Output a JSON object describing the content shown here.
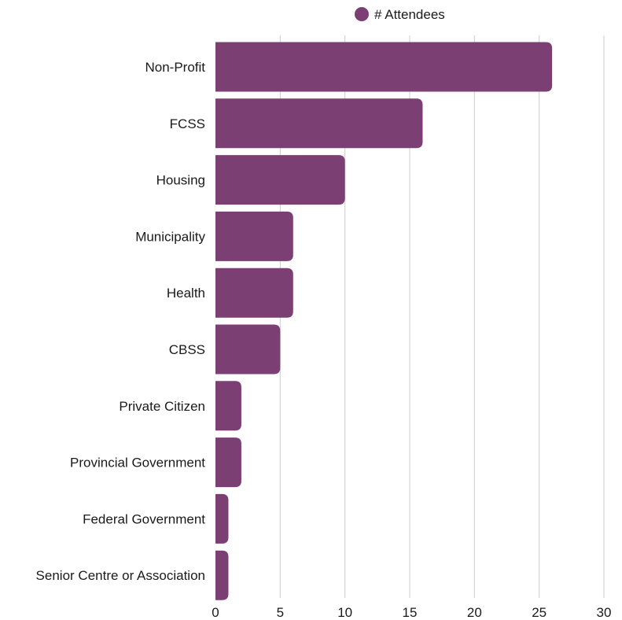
{
  "chart_data": {
    "type": "bar",
    "orientation": "horizontal",
    "categories": [
      "Non-Profit",
      "FCSS",
      "Housing",
      "Municipality",
      "Health",
      "CBSS",
      "Private Citizen",
      "Provincial Government",
      "Federal Government",
      "Senior Centre or Association"
    ],
    "series": [
      {
        "name": "# Attendees",
        "values": [
          26,
          16,
          10,
          6,
          6,
          5,
          2,
          2,
          1,
          1
        ]
      }
    ],
    "xlim": [
      0,
      30
    ],
    "xticks": [
      0,
      5,
      10,
      15,
      20,
      25,
      30
    ],
    "grid": "vertical",
    "legend_position": "top",
    "colors": {
      "bar": "#7b3f73",
      "grid": "#cccccc",
      "text": "#1a1a1a"
    }
  }
}
